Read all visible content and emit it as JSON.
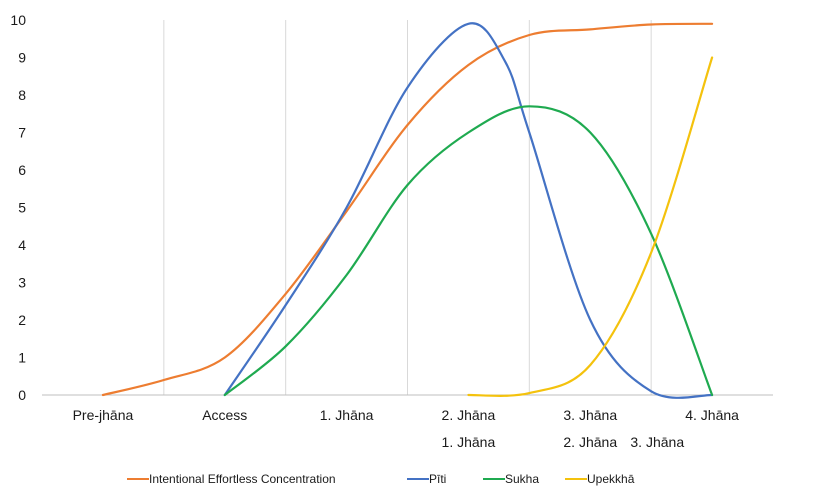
{
  "chart_data": {
    "type": "line",
    "smooth": true,
    "categories": [
      "Pre-jhāna",
      "Access",
      "1. Jhāna",
      "2. Jhāna",
      "3. Jhāna",
      "4. Jhāna"
    ],
    "x_annotations": [
      {
        "label": "1. Jhāna",
        "at": 3
      },
      {
        "label": "2. Jhāna",
        "at": 4
      },
      {
        "label": "3. Jhāna",
        "at": 4.55
      }
    ],
    "ylim": [
      0,
      10
    ],
    "yticks": [
      0,
      1,
      2,
      3,
      4,
      5,
      6,
      7,
      8,
      9,
      10
    ],
    "grid": "vertical",
    "legend_position": "bottom",
    "series": [
      {
        "name": "Intentional Effortless Concentration",
        "color": "#ED7D31",
        "points": [
          [
            0,
            0
          ],
          [
            0.5,
            0.4
          ],
          [
            1,
            1
          ],
          [
            1.5,
            2.7
          ],
          [
            2,
            4.9
          ],
          [
            2.5,
            7.2
          ],
          [
            3,
            8.8
          ],
          [
            3.5,
            9.6
          ],
          [
            4,
            9.75
          ],
          [
            4.5,
            9.88
          ],
          [
            5,
            9.9
          ]
        ]
      },
      {
        "name": "Pīti",
        "color": "#4472C4",
        "points": [
          [
            1,
            0
          ],
          [
            1.5,
            2.4
          ],
          [
            2,
            5
          ],
          [
            2.5,
            8.2
          ],
          [
            3,
            9.9
          ],
          [
            3.3,
            8.9
          ],
          [
            3.5,
            7.0
          ],
          [
            4,
            2.0
          ],
          [
            4.5,
            0.1
          ],
          [
            5,
            0
          ]
        ]
      },
      {
        "name": "Sukha",
        "color": "#1FAA50",
        "points": [
          [
            1,
            0
          ],
          [
            1.5,
            1.3
          ],
          [
            2,
            3.2
          ],
          [
            2.5,
            5.6
          ],
          [
            3,
            7.0
          ],
          [
            3.5,
            7.7
          ],
          [
            4,
            7.0
          ],
          [
            4.5,
            4.3
          ],
          [
            5,
            0
          ]
        ]
      },
      {
        "name": "Upekkhā",
        "color": "#F4C20D",
        "points": [
          [
            3,
            0
          ],
          [
            3.5,
            0.05
          ],
          [
            4,
            0.8
          ],
          [
            4.5,
            3.8
          ],
          [
            5,
            9.0
          ]
        ]
      }
    ]
  }
}
